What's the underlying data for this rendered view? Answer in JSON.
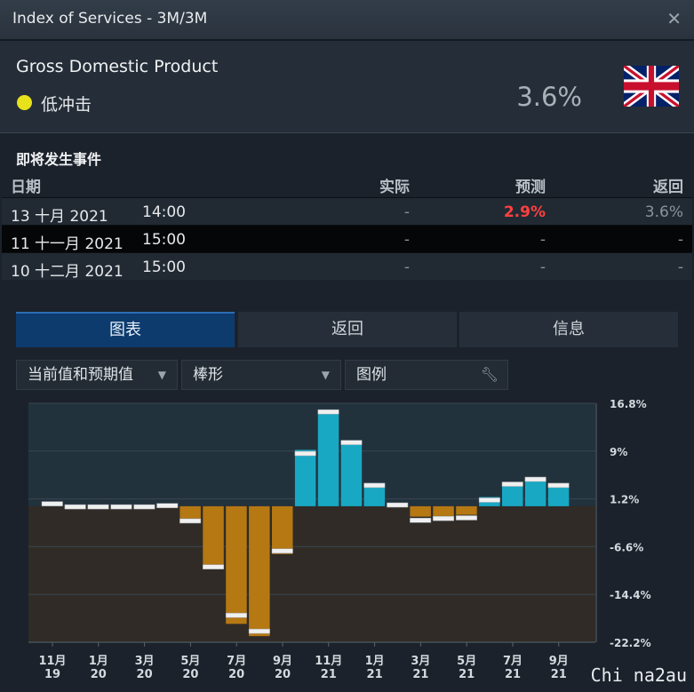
{
  "window": {
    "title": "Index of Services - 3M/3M",
    "close_glyph": "✕"
  },
  "indicator": {
    "name": "Gross Domestic Product",
    "impact_label": "低冲击",
    "impact_color": "#e8e21a",
    "current_value": "3.6%",
    "country_flag_icon": "uk-flag-icon"
  },
  "events": {
    "section_title": "即将发生事件",
    "headers": {
      "date": "日期",
      "actual": "实际",
      "forecast": "预测",
      "previous": "返回"
    },
    "rows": [
      {
        "date": "13 十月 2021",
        "time": "14:00",
        "actual": "-",
        "forecast": "2.9%",
        "previous": "3.6%"
      },
      {
        "date": "11 十一月 2021",
        "time": "15:00",
        "actual": "-",
        "forecast": "-",
        "previous": "-"
      },
      {
        "date": "10 十二月 2021",
        "time": "15:00",
        "actual": "-",
        "forecast": "-",
        "previous": "-"
      }
    ]
  },
  "tabs": [
    {
      "label": "图表",
      "active": true
    },
    {
      "label": "返回",
      "active": false
    },
    {
      "label": "信息",
      "active": false
    }
  ],
  "toolbar": {
    "series_select": "当前值和预期值",
    "type_select": "棒形",
    "legend_label": "图例"
  },
  "colors": {
    "positive": "#18a8c4",
    "negative": "#b57813",
    "forecast_marker": "#f0f0f0"
  },
  "chart_data": {
    "type": "bar",
    "ylim": [
      -22.2,
      16.8
    ],
    "yticks": [
      "16.8%",
      "9%",
      "1.2%",
      "-6.6%",
      "-14.4%",
      "-22.2%"
    ],
    "ytick_values": [
      16.8,
      9,
      1.2,
      -6.6,
      -14.4,
      -22.2
    ],
    "xtick_labels": [
      [
        "11月",
        "19"
      ],
      [
        "1月",
        "20"
      ],
      [
        "3月",
        "20"
      ],
      [
        "5月",
        "20"
      ],
      [
        "7月",
        "20"
      ],
      [
        "9月",
        "20"
      ],
      [
        "11月",
        "21"
      ],
      [
        "1月",
        "21"
      ],
      [
        "3月",
        "21"
      ],
      [
        "5月",
        "21"
      ],
      [
        "7月",
        "21"
      ],
      [
        "9月",
        "21"
      ]
    ],
    "series": [
      {
        "name": "当前值",
        "values": [
          0.2,
          -0.3,
          -0.3,
          -0.3,
          -0.3,
          -0.1,
          -2.0,
          -10.2,
          -19.2,
          -21.2,
          -7.8,
          9.2,
          15.7,
          10.7,
          3.8,
          0.4,
          -1.7,
          -1.6,
          -1.4,
          1.5,
          3.9,
          4.6,
          3.6
        ]
      },
      {
        "name": "预期值",
        "values": [
          0.4,
          -0.1,
          -0.1,
          -0.1,
          -0.1,
          0.1,
          -2.4,
          -9.9,
          -17.8,
          -20.4,
          -7.3,
          8.6,
          15.4,
          10.4,
          3.4,
          0.2,
          -2.3,
          -2.0,
          -1.9,
          1.0,
          3.6,
          4.4,
          3.4
        ]
      }
    ]
  },
  "watermark": "Chi na2au"
}
